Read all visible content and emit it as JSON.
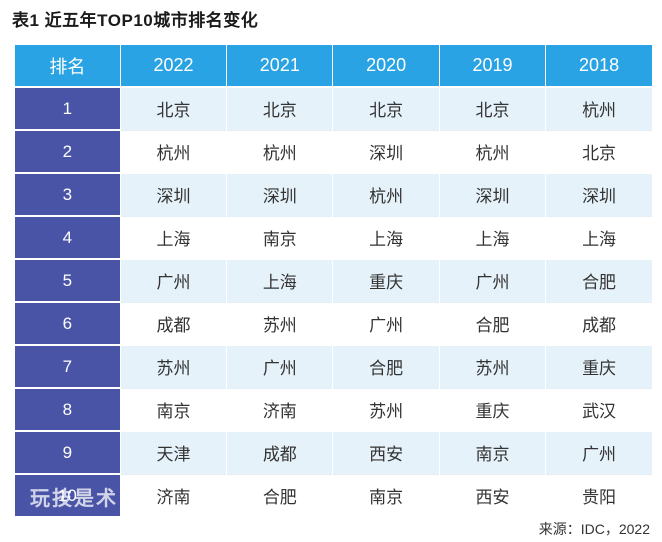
{
  "title": "表1  近五年TOP10城市排名变化",
  "table": {
    "headers": [
      "排名",
      "2022",
      "2021",
      "2020",
      "2019",
      "2018"
    ],
    "rows": [
      {
        "rank": "1",
        "cities": [
          "北京",
          "北京",
          "北京",
          "北京",
          "杭州"
        ]
      },
      {
        "rank": "2",
        "cities": [
          "杭州",
          "杭州",
          "深圳",
          "杭州",
          "北京"
        ]
      },
      {
        "rank": "3",
        "cities": [
          "深圳",
          "深圳",
          "杭州",
          "深圳",
          "深圳"
        ]
      },
      {
        "rank": "4",
        "cities": [
          "上海",
          "南京",
          "上海",
          "上海",
          "上海"
        ]
      },
      {
        "rank": "5",
        "cities": [
          "广州",
          "上海",
          "重庆",
          "广州",
          "合肥"
        ]
      },
      {
        "rank": "6",
        "cities": [
          "成都",
          "苏州",
          "广州",
          "合肥",
          "成都"
        ]
      },
      {
        "rank": "7",
        "cities": [
          "苏州",
          "广州",
          "合肥",
          "苏州",
          "重庆"
        ]
      },
      {
        "rank": "8",
        "cities": [
          "南京",
          "济南",
          "苏州",
          "重庆",
          "武汉"
        ]
      },
      {
        "rank": "9",
        "cities": [
          "天津",
          "成都",
          "西安",
          "南京",
          "广州"
        ]
      },
      {
        "rank": "10",
        "cities": [
          "济南",
          "合肥",
          "南京",
          "西安",
          "贵阳"
        ]
      }
    ]
  },
  "watermark": "玩技是术",
  "source": "来源：IDC，2022",
  "colors": {
    "header_bg": "#29a3e3",
    "rank_bg": "#4a54a6",
    "stripe_bg": "#e6f2fa"
  }
}
